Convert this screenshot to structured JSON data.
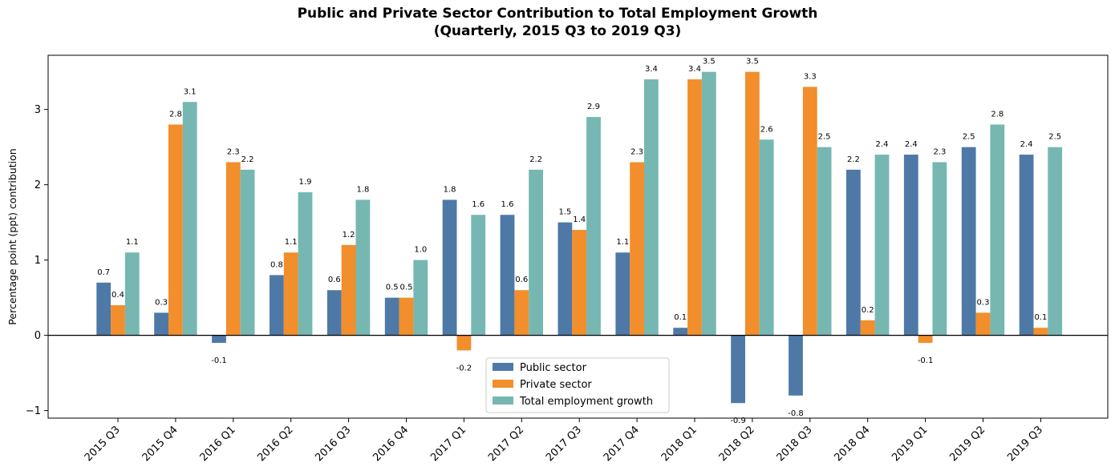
{
  "chart_data": {
    "type": "bar",
    "title": "Public and Private Sector Contribution to Total Employment Growth",
    "subtitle": "(Quarterly, 2015 Q3 to 2019 Q3)",
    "xlabel": "",
    "ylabel": "Percentage point (ppt) contribution",
    "ylim": [
      -1.1,
      3.72
    ],
    "yticks": [
      -1,
      0,
      1,
      2,
      3
    ],
    "grid": false,
    "legend_position": "lower-center",
    "categories": [
      "2015 Q3",
      "2015 Q4",
      "2016 Q1",
      "2016 Q2",
      "2016 Q3",
      "2016 Q4",
      "2017 Q1",
      "2017 Q2",
      "2017 Q3",
      "2017 Q4",
      "2018 Q1",
      "2018 Q2",
      "2018 Q3",
      "2018 Q4",
      "2019 Q1",
      "2019 Q2",
      "2019 Q3"
    ],
    "series": [
      {
        "name": "Public sector",
        "color": "#4e79a7",
        "values": [
          0.7,
          0.3,
          -0.1,
          0.8,
          0.6,
          0.5,
          1.8,
          1.6,
          1.5,
          1.1,
          0.1,
          -0.9,
          -0.8,
          2.2,
          2.4,
          2.5,
          2.4
        ]
      },
      {
        "name": "Private sector",
        "color": "#f28e2b",
        "values": [
          0.4,
          2.8,
          2.3,
          1.1,
          1.2,
          0.5,
          -0.2,
          0.6,
          1.4,
          2.3,
          3.4,
          3.5,
          3.3,
          0.2,
          -0.1,
          0.3,
          0.1
        ]
      },
      {
        "name": "Total employment growth",
        "color": "#76b7b2",
        "values": [
          1.1,
          3.1,
          2.2,
          1.9,
          1.8,
          1.0,
          1.6,
          2.2,
          2.9,
          3.4,
          3.5,
          2.6,
          2.5,
          2.4,
          2.3,
          2.8,
          2.5
        ]
      }
    ],
    "data_labels": [
      [
        "0.7",
        "0.3",
        "-0.1",
        "0.8",
        "0.6",
        "0.5",
        "1.8",
        "1.6",
        "1.5",
        "1.1",
        "0.1",
        "-0.9",
        "-0.8",
        "2.2",
        "2.4",
        "2.5",
        "2.4"
      ],
      [
        "0.4",
        "2.8",
        "2.3",
        "1.1",
        "1.2",
        "0.5",
        "-0.2",
        "0.6",
        "1.4",
        "2.3",
        "3.4",
        "3.5",
        "3.3",
        "0.2",
        "-0.1",
        "0.3",
        "0.1"
      ],
      [
        "1.1",
        "3.1",
        "2.2",
        "1.9",
        "1.8",
        "1.0",
        "1.6",
        "2.2",
        "2.9",
        "3.4",
        "3.5",
        "2.6",
        "2.5",
        "2.4",
        "2.3",
        "2.8",
        "2.5"
      ]
    ]
  }
}
